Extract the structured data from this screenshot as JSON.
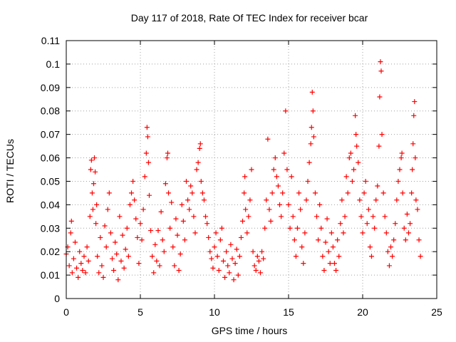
{
  "chart_data": {
    "type": "scatter",
    "title": "Day 117 of 2018, Rate Of TEC Index for receiver bcar",
    "xlabel": "GPS time / hours",
    "ylabel": "ROTI / TECUs",
    "xlim": [
      0,
      25
    ],
    "ylim": [
      0,
      0.11
    ],
    "xticks": [
      0,
      5,
      10,
      15,
      20,
      25
    ],
    "yticks": [
      0,
      0.01,
      0.02,
      0.03,
      0.04,
      0.05,
      0.06,
      0.07,
      0.08,
      0.09,
      0.1,
      0.11
    ],
    "grid": true,
    "marker": "+",
    "color": "#ff0000",
    "series": [
      {
        "values": [
          [
            0.0,
            0.019
          ],
          [
            0.1,
            0.022
          ],
          [
            0.2,
            0.014
          ],
          [
            0.3,
            0.028
          ],
          [
            0.35,
            0.033
          ],
          [
            0.4,
            0.011
          ],
          [
            0.5,
            0.017
          ],
          [
            0.6,
            0.024
          ],
          [
            0.7,
            0.013
          ],
          [
            0.8,
            0.009
          ],
          [
            0.9,
            0.02
          ],
          [
            1.0,
            0.015
          ],
          [
            1.1,
            0.012
          ],
          [
            1.2,
            0.018
          ],
          [
            1.3,
            0.011
          ],
          [
            1.4,
            0.022
          ],
          [
            1.5,
            0.016
          ],
          [
            1.6,
            0.035
          ],
          [
            1.65,
            0.055
          ],
          [
            1.7,
            0.059
          ],
          [
            1.75,
            0.045
          ],
          [
            1.8,
            0.038
          ],
          [
            1.85,
            0.049
          ],
          [
            1.9,
            0.06
          ],
          [
            1.95,
            0.054
          ],
          [
            2.0,
            0.032
          ],
          [
            2.05,
            0.04
          ],
          [
            2.1,
            0.018
          ],
          [
            2.2,
            0.011
          ],
          [
            2.3,
            0.026
          ],
          [
            2.4,
            0.014
          ],
          [
            2.5,
            0.009
          ],
          [
            2.6,
            0.031
          ],
          [
            2.7,
            0.022
          ],
          [
            2.8,
            0.038
          ],
          [
            2.9,
            0.045
          ],
          [
            3.0,
            0.028
          ],
          [
            3.1,
            0.017
          ],
          [
            3.2,
            0.012
          ],
          [
            3.3,
            0.024
          ],
          [
            3.4,
            0.019
          ],
          [
            3.5,
            0.008
          ],
          [
            3.6,
            0.035
          ],
          [
            3.7,
            0.016
          ],
          [
            3.8,
            0.027
          ],
          [
            3.9,
            0.013
          ],
          [
            4.0,
            0.021
          ],
          [
            4.1,
            0.03
          ],
          [
            4.2,
            0.018
          ],
          [
            4.3,
            0.04
          ],
          [
            4.4,
            0.045
          ],
          [
            4.5,
            0.05
          ],
          [
            4.6,
            0.042
          ],
          [
            4.7,
            0.034
          ],
          [
            4.8,
            0.026
          ],
          [
            4.9,
            0.015
          ],
          [
            5.0,
            0.032
          ],
          [
            5.1,
            0.025
          ],
          [
            5.2,
            0.038
          ],
          [
            5.3,
            0.052
          ],
          [
            5.4,
            0.062
          ],
          [
            5.45,
            0.073
          ],
          [
            5.5,
            0.069
          ],
          [
            5.55,
            0.058
          ],
          [
            5.6,
            0.044
          ],
          [
            5.7,
            0.029
          ],
          [
            5.8,
            0.018
          ],
          [
            5.9,
            0.011
          ],
          [
            6.0,
            0.023
          ],
          [
            6.1,
            0.016
          ],
          [
            6.2,
            0.029
          ],
          [
            6.3,
            0.014
          ],
          [
            6.4,
            0.037
          ],
          [
            6.5,
            0.025
          ],
          [
            6.6,
            0.02
          ],
          [
            6.7,
            0.049
          ],
          [
            6.8,
            0.06
          ],
          [
            6.85,
            0.062
          ],
          [
            6.9,
            0.045
          ],
          [
            7.0,
            0.03
          ],
          [
            7.1,
            0.041
          ],
          [
            7.2,
            0.022
          ],
          [
            7.3,
            0.014
          ],
          [
            7.4,
            0.034
          ],
          [
            7.5,
            0.027
          ],
          [
            7.6,
            0.012
          ],
          [
            7.7,
            0.019
          ],
          [
            7.8,
            0.04
          ],
          [
            7.9,
            0.033
          ],
          [
            8.0,
            0.025
          ],
          [
            8.1,
            0.05
          ],
          [
            8.2,
            0.042
          ],
          [
            8.3,
            0.038
          ],
          [
            8.4,
            0.048
          ],
          [
            8.5,
            0.045
          ],
          [
            8.6,
            0.035
          ],
          [
            8.7,
            0.028
          ],
          [
            8.8,
            0.055
          ],
          [
            8.9,
            0.058
          ],
          [
            9.0,
            0.064
          ],
          [
            9.05,
            0.066
          ],
          [
            9.1,
            0.05
          ],
          [
            9.2,
            0.045
          ],
          [
            9.3,
            0.042
          ],
          [
            9.4,
            0.035
          ],
          [
            9.5,
            0.032
          ],
          [
            9.6,
            0.026
          ],
          [
            9.7,
            0.02
          ],
          [
            9.8,
            0.017
          ],
          [
            9.9,
            0.013
          ],
          [
            10.0,
            0.022
          ],
          [
            10.1,
            0.028
          ],
          [
            10.2,
            0.018
          ],
          [
            10.3,
            0.012
          ],
          [
            10.4,
            0.025
          ],
          [
            10.5,
            0.03
          ],
          [
            10.6,
            0.016
          ],
          [
            10.7,
            0.009
          ],
          [
            10.8,
            0.02
          ],
          [
            10.9,
            0.014
          ],
          [
            11.0,
            0.011
          ],
          [
            11.1,
            0.023
          ],
          [
            11.2,
            0.017
          ],
          [
            11.3,
            0.008
          ],
          [
            11.4,
            0.015
          ],
          [
            11.5,
            0.021
          ],
          [
            11.6,
            0.01
          ],
          [
            11.7,
            0.018
          ],
          [
            11.8,
            0.026
          ],
          [
            11.9,
            0.033
          ],
          [
            12.0,
            0.045
          ],
          [
            12.05,
            0.052
          ],
          [
            12.1,
            0.038
          ],
          [
            12.2,
            0.028
          ],
          [
            12.3,
            0.035
          ],
          [
            12.4,
            0.042
          ],
          [
            12.5,
            0.055
          ],
          [
            12.6,
            0.02
          ],
          [
            12.7,
            0.014
          ],
          [
            12.8,
            0.012
          ],
          [
            12.9,
            0.018
          ],
          [
            13.0,
            0.016
          ],
          [
            13.1,
            0.011
          ],
          [
            13.2,
            0.02
          ],
          [
            13.3,
            0.017
          ],
          [
            13.4,
            0.03
          ],
          [
            13.5,
            0.042
          ],
          [
            13.6,
            0.068
          ],
          [
            13.7,
            0.038
          ],
          [
            13.8,
            0.033
          ],
          [
            13.9,
            0.045
          ],
          [
            14.0,
            0.055
          ],
          [
            14.1,
            0.06
          ],
          [
            14.2,
            0.052
          ],
          [
            14.3,
            0.048
          ],
          [
            14.4,
            0.04
          ],
          [
            14.5,
            0.035
          ],
          [
            14.6,
            0.045
          ],
          [
            14.7,
            0.062
          ],
          [
            14.8,
            0.08
          ],
          [
            14.9,
            0.055
          ],
          [
            15.0,
            0.04
          ],
          [
            15.1,
            0.03
          ],
          [
            15.2,
            0.052
          ],
          [
            15.3,
            0.035
          ],
          [
            15.4,
            0.025
          ],
          [
            15.5,
            0.018
          ],
          [
            15.6,
            0.03
          ],
          [
            15.7,
            0.045
          ],
          [
            15.8,
            0.038
          ],
          [
            15.9,
            0.022
          ],
          [
            16.0,
            0.015
          ],
          [
            16.1,
            0.028
          ],
          [
            16.2,
            0.042
          ],
          [
            16.3,
            0.05
          ],
          [
            16.4,
            0.058
          ],
          [
            16.5,
            0.066
          ],
          [
            16.55,
            0.073
          ],
          [
            16.6,
            0.088
          ],
          [
            16.65,
            0.08
          ],
          [
            16.7,
            0.069
          ],
          [
            16.8,
            0.045
          ],
          [
            16.9,
            0.035
          ],
          [
            17.0,
            0.025
          ],
          [
            17.1,
            0.04
          ],
          [
            17.2,
            0.03
          ],
          [
            17.3,
            0.018
          ],
          [
            17.4,
            0.012
          ],
          [
            17.5,
            0.024
          ],
          [
            17.6,
            0.034
          ],
          [
            17.7,
            0.02
          ],
          [
            17.8,
            0.015
          ],
          [
            17.9,
            0.028
          ],
          [
            18.0,
            0.022
          ],
          [
            18.1,
            0.015
          ],
          [
            18.2,
            0.012
          ],
          [
            18.3,
            0.025
          ],
          [
            18.4,
            0.018
          ],
          [
            18.5,
            0.032
          ],
          [
            18.6,
            0.042
          ],
          [
            18.7,
            0.028
          ],
          [
            18.8,
            0.035
          ],
          [
            18.9,
            0.052
          ],
          [
            19.0,
            0.045
          ],
          [
            19.1,
            0.06
          ],
          [
            19.2,
            0.062
          ],
          [
            19.3,
            0.05
          ],
          [
            19.4,
            0.055
          ],
          [
            19.5,
            0.078
          ],
          [
            19.55,
            0.07
          ],
          [
            19.6,
            0.065
          ],
          [
            19.7,
            0.058
          ],
          [
            19.8,
            0.042
          ],
          [
            19.9,
            0.035
          ],
          [
            20.0,
            0.028
          ],
          [
            20.1,
            0.045
          ],
          [
            20.2,
            0.05
          ],
          [
            20.3,
            0.032
          ],
          [
            20.4,
            0.038
          ],
          [
            20.5,
            0.022
          ],
          [
            20.6,
            0.018
          ],
          [
            20.7,
            0.035
          ],
          [
            20.8,
            0.03
          ],
          [
            20.9,
            0.042
          ],
          [
            21.0,
            0.048
          ],
          [
            21.1,
            0.065
          ],
          [
            21.15,
            0.086
          ],
          [
            21.2,
            0.101
          ],
          [
            21.25,
            0.097
          ],
          [
            21.3,
            0.07
          ],
          [
            21.4,
            0.045
          ],
          [
            21.5,
            0.035
          ],
          [
            21.6,
            0.028
          ],
          [
            21.7,
            0.02
          ],
          [
            21.8,
            0.014
          ],
          [
            21.9,
            0.022
          ],
          [
            22.0,
            0.018
          ],
          [
            22.1,
            0.025
          ],
          [
            22.2,
            0.032
          ],
          [
            22.3,
            0.042
          ],
          [
            22.4,
            0.05
          ],
          [
            22.5,
            0.055
          ],
          [
            22.6,
            0.06
          ],
          [
            22.65,
            0.062
          ],
          [
            22.7,
            0.045
          ],
          [
            22.8,
            0.03
          ],
          [
            22.9,
            0.025
          ],
          [
            23.0,
            0.036
          ],
          [
            23.1,
            0.028
          ],
          [
            23.2,
            0.032
          ],
          [
            23.3,
            0.045
          ],
          [
            23.35,
            0.055
          ],
          [
            23.4,
            0.066
          ],
          [
            23.45,
            0.078
          ],
          [
            23.5,
            0.084
          ],
          [
            23.55,
            0.06
          ],
          [
            23.6,
            0.042
          ],
          [
            23.7,
            0.038
          ],
          [
            23.8,
            0.025
          ],
          [
            23.9,
            0.018
          ]
        ]
      }
    ]
  }
}
